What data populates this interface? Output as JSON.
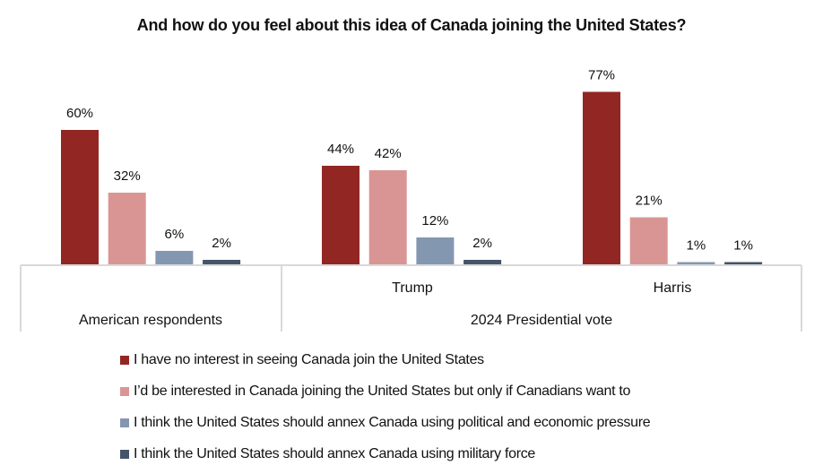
{
  "chart_data": {
    "type": "bar",
    "title": "And how do you feel about this idea of Canada joining the United States?",
    "xlabel": "",
    "ylabel": "",
    "ylim": [
      0,
      80
    ],
    "grid": false,
    "legend_position": "bottom-center",
    "categories": [
      "American respondents",
      "Trump",
      "Harris"
    ],
    "category_groups": [
      {
        "label": "",
        "categories": [
          "American respondents"
        ],
        "group_label": "American respondents"
      },
      {
        "label": "2024 Presidential vote",
        "categories": [
          "Trump",
          "Harris"
        ]
      }
    ],
    "sub_labels": [
      "",
      "Trump",
      "Harris"
    ],
    "group_labels": [
      "American respondents",
      "2024 Presidential vote"
    ],
    "series": [
      {
        "name": "I have no interest in seeing Canada join the United States",
        "color": "#922623",
        "values": [
          60,
          44,
          77
        ]
      },
      {
        "name": "I’d be interested in Canada joining the United States but only if Canadians want to",
        "color": "#d99594",
        "values": [
          32,
          42,
          21
        ]
      },
      {
        "name": "I think the United States should annex Canada using political and economic pressure",
        "color": "#8497b0",
        "values": [
          6,
          12,
          1
        ]
      },
      {
        "name": "I think the United States should annex Canada using military force",
        "color": "#44546a",
        "values": [
          2,
          2,
          1
        ]
      }
    ],
    "value_suffix": "%"
  }
}
